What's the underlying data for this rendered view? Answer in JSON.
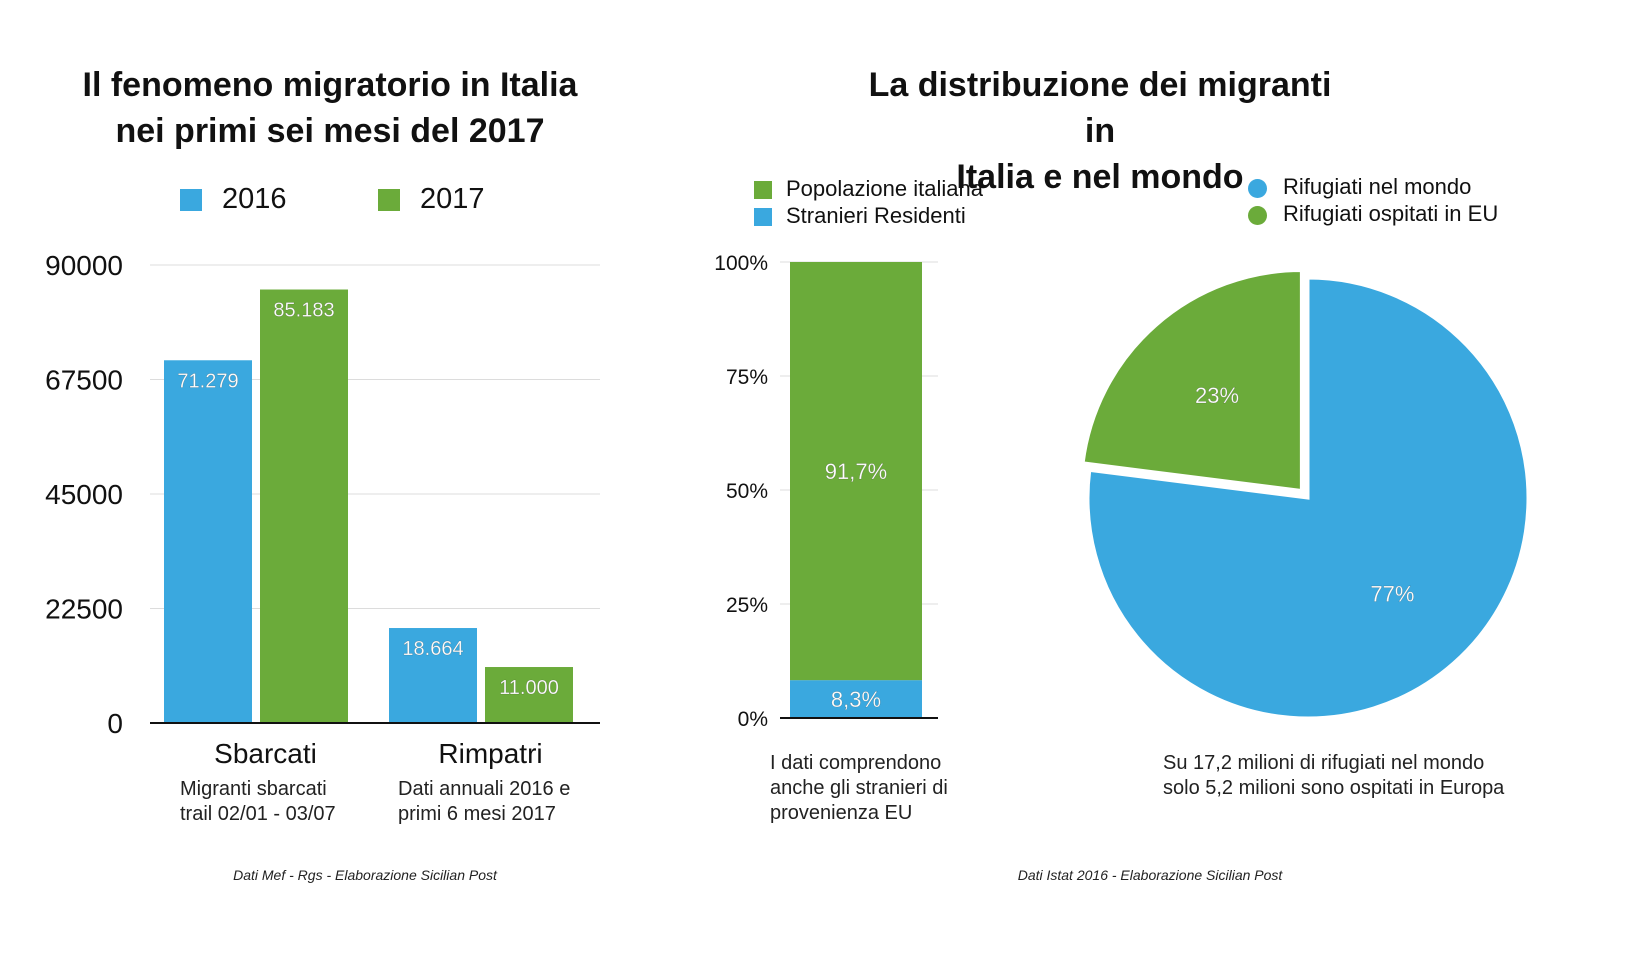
{
  "left": {
    "title": "Il fenomeno migratorio in Italia\nnei primi sei mesi del 2017",
    "legend": [
      {
        "label": "2016",
        "color": "#3aa8df"
      },
      {
        "label": "2017",
        "color": "#6bab3a"
      }
    ],
    "captions": [
      "Migranti sbarcati\ntrail 02/01 - 03/07",
      "Dati annuali 2016 e\nprimi 6 mesi 2017"
    ],
    "source": "Dati Mef - Rgs - Elaborazione Sicilian Post"
  },
  "right": {
    "title": "La distribuzione dei migranti in\nItalia e nel mondo",
    "bar_legend": [
      {
        "label": "Popolazione italiana",
        "color": "#6bab3a"
      },
      {
        "label": "Stranieri Residenti",
        "color": "#3aa8df"
      }
    ],
    "pie_legend": [
      {
        "label": "Rifugiati nel mondo",
        "color": "#3aa8df"
      },
      {
        "label": "Rifugiati ospitati in EU",
        "color": "#6bab3a"
      }
    ],
    "bar_caption": "I dati comprendono\nanche gli stranieri di\nprovenienza EU",
    "pie_caption": "Su 17,2 milioni di rifugiati nel mondo\nsolo 5,2 milioni sono ospitati in Europa",
    "source": "Dati Istat 2016 - Elaborazione Sicilian Post"
  },
  "chart_data": [
    {
      "type": "bar",
      "categories": [
        "Sbarcati",
        "Rimpatri"
      ],
      "series": [
        {
          "name": "2016",
          "values": [
            71279,
            18664
          ],
          "labels": [
            "71.279",
            "18.664"
          ],
          "color": "#3aa8df"
        },
        {
          "name": "2017",
          "values": [
            85183,
            11000
          ],
          "labels": [
            "85.183",
            "11.000"
          ],
          "color": "#6bab3a"
        }
      ],
      "ylim": [
        0,
        90000
      ],
      "yticks": [
        "0",
        "22500",
        "45000",
        "67500",
        "90000"
      ],
      "grid": true
    },
    {
      "type": "bar",
      "stacked": true,
      "categories": [
        ""
      ],
      "series": [
        {
          "name": "Stranieri Residenti",
          "values": [
            8.3
          ],
          "label": "8,3%",
          "color": "#3aa8df"
        },
        {
          "name": "Popolazione italiana",
          "values": [
            91.7
          ],
          "label": "91,7%",
          "color": "#6bab3a"
        }
      ],
      "ylim": [
        0,
        100
      ],
      "yticks": [
        "0%",
        "25%",
        "50%",
        "75%",
        "100%"
      ],
      "grid": true
    },
    {
      "type": "pie",
      "slices": [
        {
          "name": "Rifugiati nel mondo",
          "value": 77,
          "label": "77%",
          "color": "#3aa8df"
        },
        {
          "name": "Rifugiati ospitati in EU",
          "value": 23,
          "label": "23%",
          "color": "#6bab3a",
          "exploded": true
        }
      ]
    }
  ]
}
